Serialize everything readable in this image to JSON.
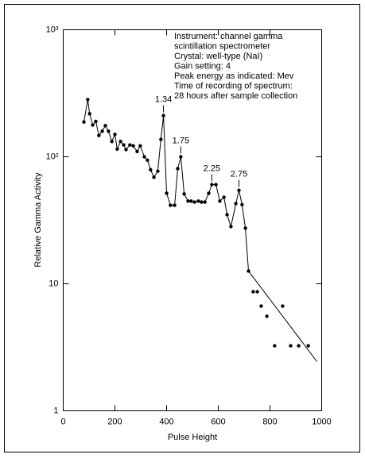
{
  "chart_data": {
    "type": "scatter",
    "x_label": "Pulse Height",
    "y_label": "Relative Gamma Activity",
    "note_lines": [
      "Instrument: channel gamma",
      "scintillation spectrometer",
      "Crystal: well-type (NaI)",
      "Gain setting: 4",
      "Peak energy as indicated: Mev",
      "Time of recording of spectrum:",
      "28 hours after sample collection"
    ],
    "xlim": [
      0,
      1000
    ],
    "xticks": [
      0,
      200,
      400,
      600,
      800,
      1000
    ],
    "ylim": [
      1,
      1000
    ],
    "log_y": true,
    "yticks": [
      1,
      10,
      {
        "value": 100,
        "label": "10²"
      },
      {
        "value": 1000,
        "label": "10³"
      }
    ],
    "color": "#000000",
    "series": [
      {
        "style": "markers+line",
        "x": [
          80,
          95,
          102,
          114,
          126,
          138,
          151,
          163,
          175,
          188,
          200,
          209,
          222,
          234,
          243,
          258,
          271,
          286,
          298,
          314,
          326,
          338,
          351,
          366,
          378,
          388,
          400,
          415,
          431,
          443,
          455,
          468,
          483,
          495,
          508,
          523,
          535,
          548,
          563,
          575,
          591,
          606,
          622,
          634,
          649,
          668,
          680,
          692,
          705,
          717
        ],
        "values": [
          188,
          282,
          218,
          178,
          190,
          147,
          159,
          176,
          159,
          132,
          150,
          115,
          132,
          124,
          114,
          124,
          122,
          110,
          122,
          100,
          94,
          79,
          69,
          77,
          137,
          211,
          51.6,
          41.5,
          41.5,
          80.6,
          100,
          51,
          44.8,
          44.8,
          44,
          44.8,
          44,
          44,
          51.6,
          60.4,
          60.4,
          44.8,
          48,
          35,
          28.2,
          42.8,
          54.5,
          42,
          27.4,
          12.6
        ]
      },
      {
        "style": "markers",
        "x": [
          735,
          751,
          766,
          788,
          818,
          849,
          880,
          911,
          948
        ],
        "values": [
          8.66,
          8.66,
          6.68,
          5.55,
          3.25,
          6.68,
          3.25,
          3.25,
          3.25
        ]
      },
      {
        "style": "line",
        "x": [
          717,
          982
        ],
        "values": [
          12.6,
          2.44
        ]
      }
    ],
    "annotations": [
      {
        "text": "1.34",
        "x": 388,
        "y": 211
      },
      {
        "text": "1.75",
        "x": 455,
        "y": 100
      },
      {
        "text": "2.25",
        "x": 575,
        "y": 60.4
      },
      {
        "text": "2.75",
        "x": 680,
        "y": 54.5
      }
    ]
  }
}
